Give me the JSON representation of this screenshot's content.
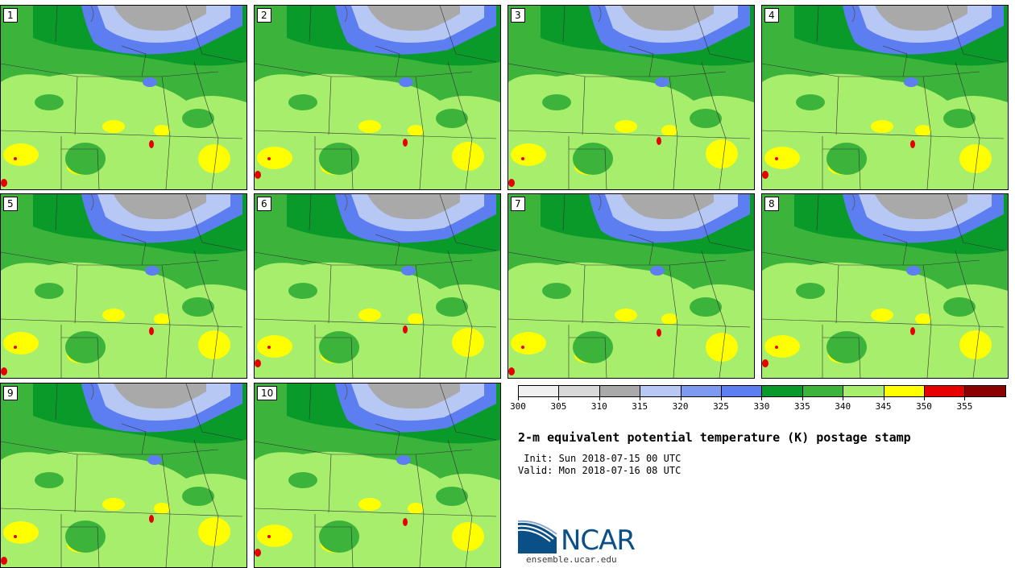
{
  "panels": [
    {
      "label": "1"
    },
    {
      "label": "2"
    },
    {
      "label": "3"
    },
    {
      "label": "4"
    },
    {
      "label": "5"
    },
    {
      "label": "6"
    },
    {
      "label": "7"
    },
    {
      "label": "8"
    },
    {
      "label": "9"
    },
    {
      "label": "10"
    }
  ],
  "colorbar": {
    "colors": [
      "#f0f0f0",
      "#d8d8d8",
      "#a9a9a9",
      "#b8c8f5",
      "#7e9af0",
      "#5c7ef0",
      "#0a9a2a",
      "#3cb43c",
      "#a6ee6c",
      "#ffff00",
      "#e60000",
      "#8b0000"
    ],
    "labels": [
      "300",
      "305",
      "310",
      "315",
      "320",
      "325",
      "330",
      "335",
      "340",
      "345",
      "350",
      "355"
    ]
  },
  "title": "2-m equivalent potential temperature (K) postage stamp",
  "init": " Init: Sun 2018-07-15 00 UTC",
  "valid": "Valid: Mon 2018-07-16 08 UTC",
  "logo": {
    "text": "NCAR",
    "site": "ensemble.ucar.edu"
  }
}
